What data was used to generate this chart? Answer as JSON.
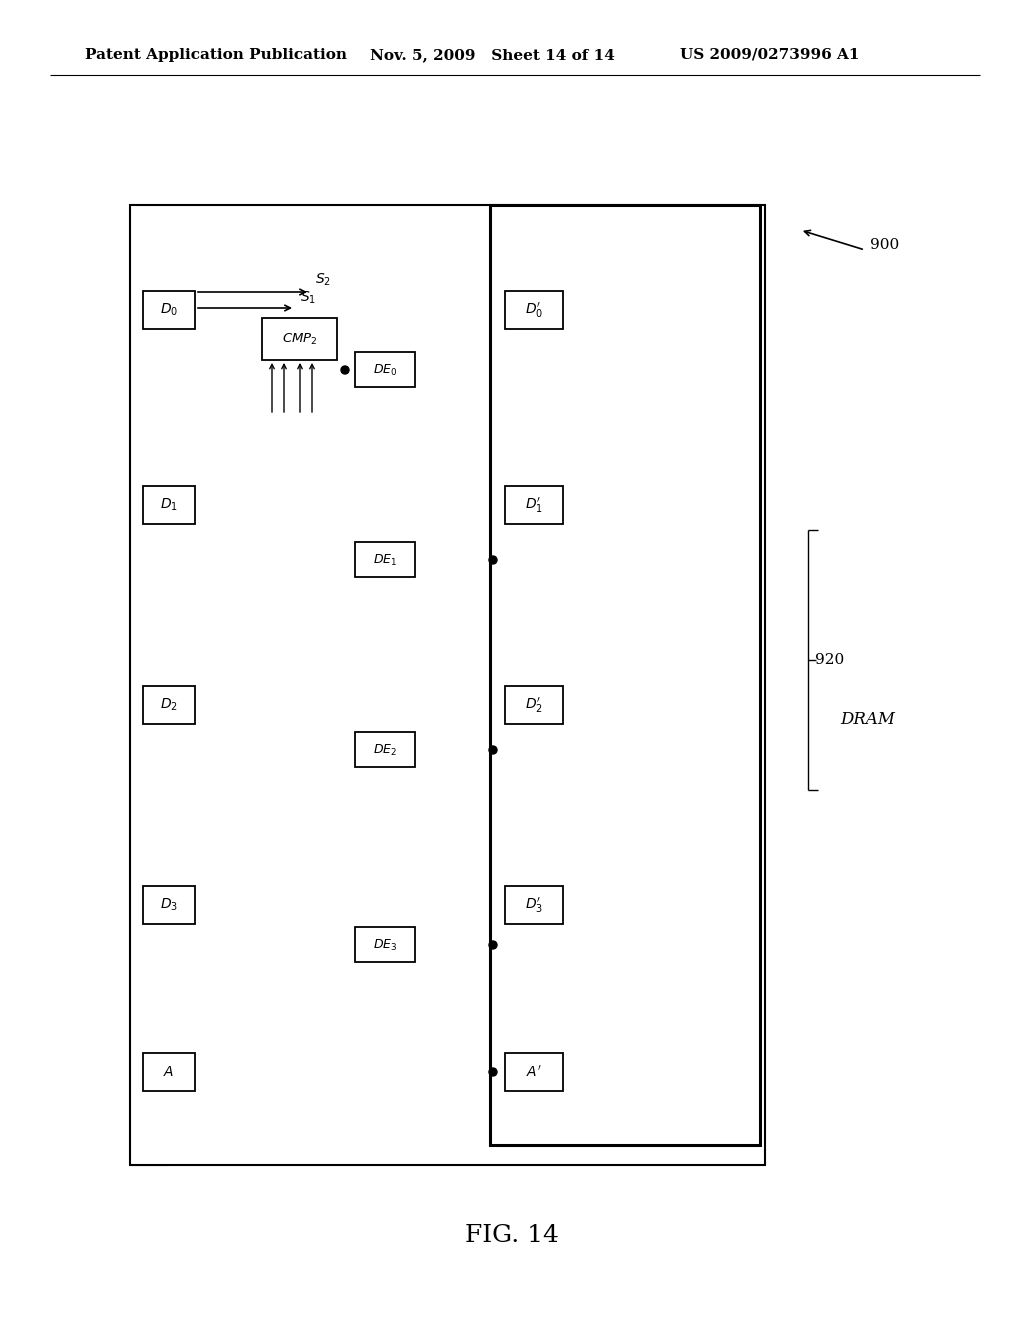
{
  "title": "FIG. 14",
  "header_left": "Patent Application Publication",
  "header_mid": "Nov. 5, 2009   Sheet 14 of 14",
  "header_right": "US 2009/0273996 A1",
  "bg_color": "#ffffff",
  "label_900": "900",
  "label_920": "920",
  "dram_text": "DRAM"
}
